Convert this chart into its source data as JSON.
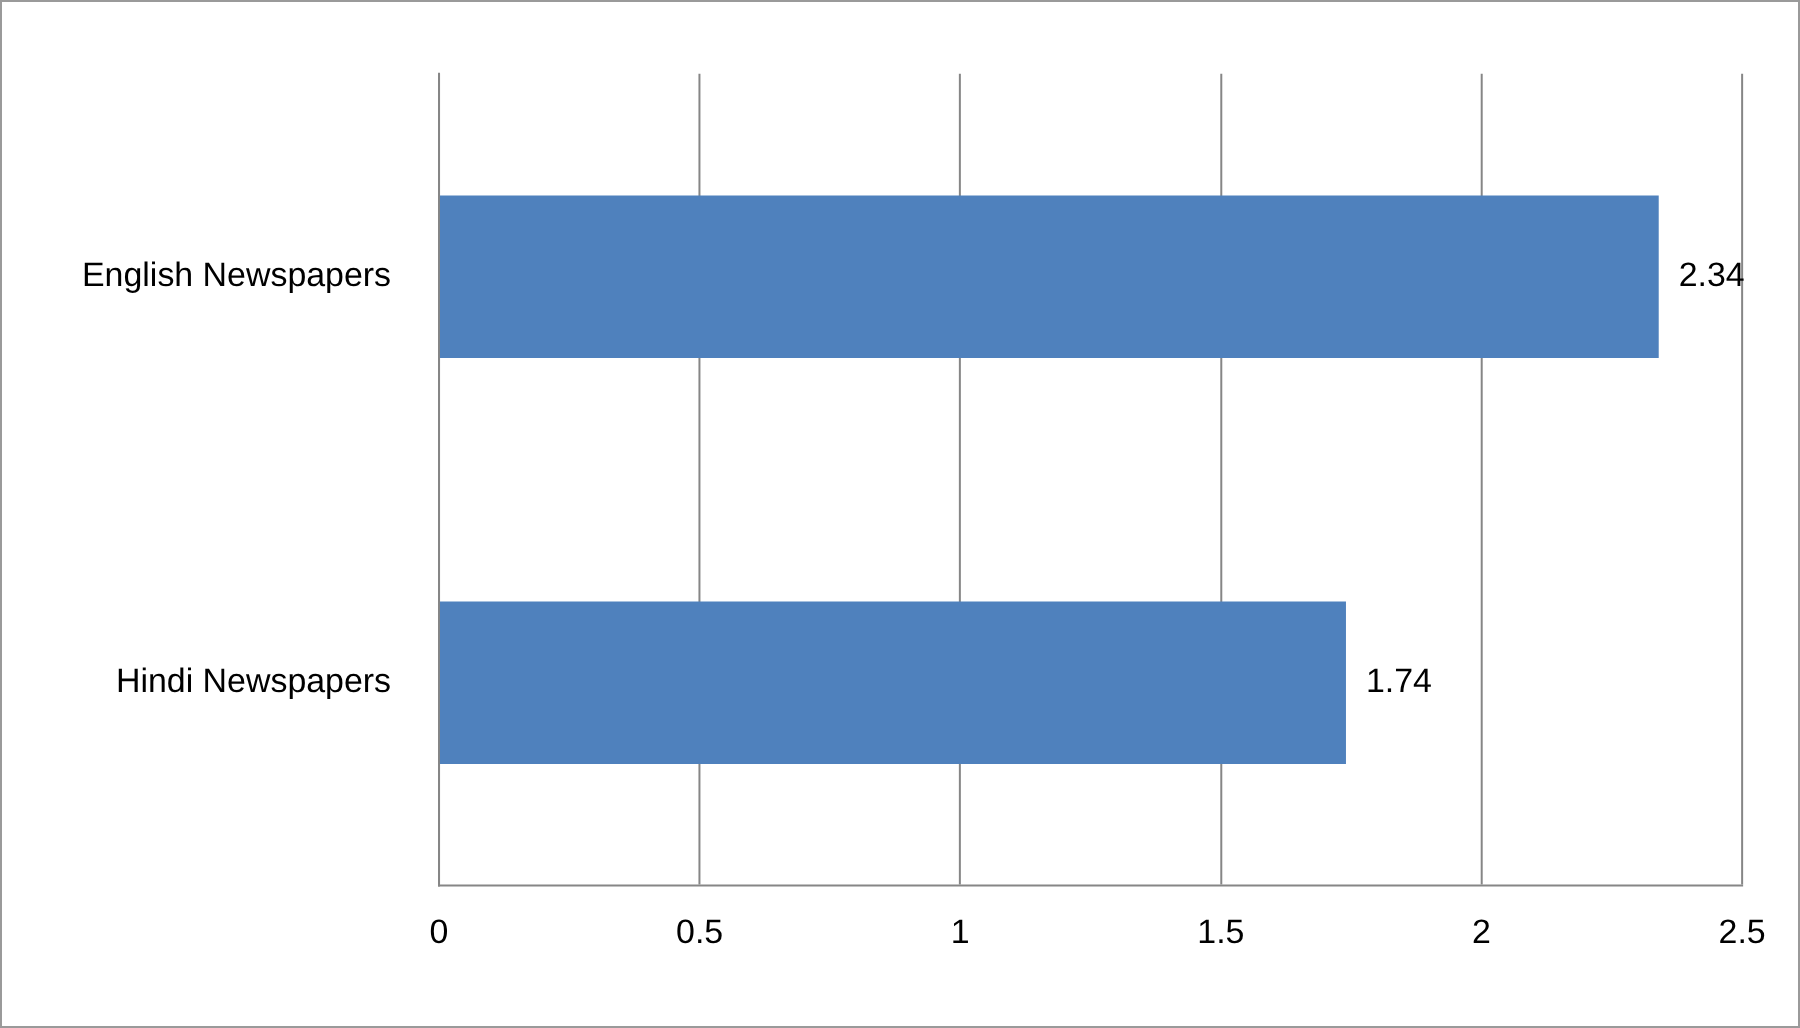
{
  "chart_data": {
    "type": "bar",
    "orientation": "horizontal",
    "categories": [
      "English Newspapers",
      "Hindi Newspapers"
    ],
    "values": [
      2.34,
      1.74
    ],
    "color": "#4f81bd",
    "xlim": [
      0,
      2.5
    ],
    "xticks": [
      0,
      0.5,
      1,
      1.5,
      2,
      2.5
    ],
    "grid": "x",
    "data_labels": true
  }
}
